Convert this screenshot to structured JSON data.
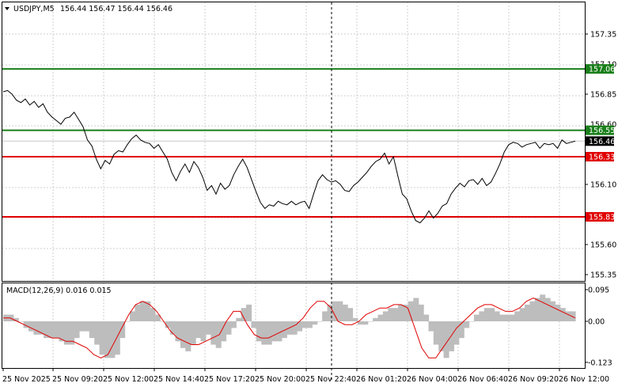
{
  "header": {
    "symbol": "USDJPY,M5",
    "ohlc": "156.44 156.47 156.44 156.46",
    "menu_arrow": "triangle-down-icon"
  },
  "price_axis": {
    "ticks": [
      "157.35",
      "156.85",
      "156.10",
      "155.60",
      "155.35"
    ],
    "partially_hidden_ticks": [
      "157.10",
      "156.60"
    ]
  },
  "levels": [
    {
      "value": 157.06,
      "label": "157.06",
      "color": "#1a7f1a",
      "kind": "resistance"
    },
    {
      "value": 156.55,
      "label": "156.55",
      "color": "#1a7f1a",
      "kind": "resistance"
    },
    {
      "value": 156.33,
      "label": "156.33",
      "color": "#e00000",
      "kind": "support"
    },
    {
      "value": 155.83,
      "label": "155.83",
      "color": "#e00000",
      "kind": "support"
    }
  ],
  "current_price": {
    "value": 156.46,
    "label": "156.46",
    "color": "#000000"
  },
  "macd": {
    "title": "MACD(12,26,9) 0.016 0.015",
    "ticks": [
      "0.095",
      "0.00",
      "-0.123"
    ],
    "histogram_color": "#bdbdbd",
    "signal_color": "#e00000"
  },
  "time_axis": {
    "labels": [
      "25 Nov 2025",
      "25 Nov 09:20",
      "25 Nov 12:00",
      "25 Nov 14:40",
      "25 Nov 17:20",
      "25 Nov 20:00",
      "25 Nov 22:40",
      "26 Nov 01:20",
      "26 Nov 04:00",
      "26 Nov 06:40",
      "26 Nov 09:20",
      "26 Nov 12:00"
    ]
  },
  "chart_data": {
    "type": "line",
    "series": [
      {
        "values": [
          156.87,
          156.88,
          156.85,
          156.8,
          156.78,
          156.81,
          156.76,
          156.79,
          156.74,
          156.77,
          156.7,
          156.66,
          156.63,
          156.6,
          156.65,
          156.66,
          156.7,
          156.64,
          156.58,
          156.47,
          156.42,
          156.31,
          156.23,
          156.3,
          156.27,
          156.35,
          156.38,
          156.37,
          156.43,
          156.48,
          156.51,
          156.47,
          156.45,
          156.44,
          156.4,
          156.43,
          156.37,
          156.31,
          156.2,
          156.13,
          156.21,
          156.27,
          156.2,
          156.29,
          156.24,
          156.16,
          156.05,
          156.09,
          156.02,
          156.11,
          156.06,
          156.09,
          156.18,
          156.25,
          156.31,
          156.24,
          156.14,
          156.04,
          155.95,
          155.9,
          155.93,
          155.92,
          155.96,
          155.94,
          155.93,
          155.96,
          155.93,
          155.95,
          155.96,
          155.9,
          156.02,
          156.13,
          156.18,
          156.14,
          156.12,
          156.13,
          156.1,
          156.05,
          156.04,
          156.09,
          156.12,
          156.16,
          156.2,
          156.25,
          156.29,
          156.31,
          156.36,
          156.27,
          156.33,
          156.17,
          156.02,
          155.98,
          155.88,
          155.8,
          155.78,
          155.82,
          155.88,
          155.82,
          155.86,
          155.92,
          155.94,
          156.02,
          156.07,
          156.11,
          156.08,
          156.13,
          156.14,
          156.1,
          156.15,
          156.09,
          156.12,
          156.19,
          156.27,
          156.37,
          156.43,
          156.45,
          156.44,
          156.41,
          156.43,
          156.44,
          156.45,
          156.4,
          156.44,
          156.43,
          156.44,
          156.4,
          156.47,
          156.44,
          156.45,
          156.46
        ]
      }
    ],
    "ylim": [
      155.28,
      157.5
    ]
  },
  "macd_data": {
    "histogram": [
      0.02,
      0.02,
      0.01,
      0.0,
      -0.02,
      -0.03,
      -0.04,
      -0.04,
      -0.05,
      -0.05,
      -0.05,
      -0.06,
      -0.07,
      -0.07,
      -0.05,
      -0.03,
      -0.03,
      -0.05,
      -0.07,
      -0.1,
      -0.11,
      -0.11,
      -0.1,
      -0.05,
      0.0,
      0.03,
      0.05,
      0.06,
      0.06,
      0.04,
      0.02,
      0.0,
      -0.02,
      -0.04,
      -0.06,
      -0.08,
      -0.09,
      -0.07,
      -0.05,
      -0.06,
      -0.04,
      -0.07,
      -0.08,
      -0.06,
      -0.04,
      -0.02,
      0.01,
      0.04,
      0.05,
      -0.02,
      -0.06,
      -0.07,
      -0.07,
      -0.06,
      -0.06,
      -0.05,
      -0.04,
      -0.04,
      -0.03,
      -0.02,
      -0.02,
      -0.01,
      0.0,
      0.03,
      0.05,
      0.06,
      0.06,
      0.05,
      0.04,
      0.01,
      -0.01,
      -0.01,
      0.0,
      0.01,
      0.02,
      0.03,
      0.04,
      0.04,
      0.05,
      0.05,
      0.06,
      0.07,
      0.05,
      0.02,
      -0.03,
      -0.07,
      -0.09,
      -0.11,
      -0.09,
      -0.07,
      -0.05,
      -0.02,
      0.0,
      0.02,
      0.03,
      0.04,
      0.04,
      0.03,
      0.02,
      0.02,
      0.02,
      0.03,
      0.04,
      0.05,
      0.06,
      0.07,
      0.08,
      0.07,
      0.06,
      0.05,
      0.04,
      0.03,
      0.03
    ],
    "signal": [
      0.01,
      0.01,
      0.0,
      -0.01,
      -0.02,
      -0.03,
      -0.04,
      -0.05,
      -0.05,
      -0.06,
      -0.06,
      -0.07,
      -0.08,
      -0.1,
      -0.11,
      -0.1,
      -0.06,
      -0.02,
      0.02,
      0.05,
      0.06,
      0.05,
      0.03,
      0.0,
      -0.03,
      -0.05,
      -0.06,
      -0.07,
      -0.07,
      -0.06,
      -0.05,
      -0.04,
      0.0,
      0.03,
      0.03,
      -0.01,
      -0.04,
      -0.05,
      -0.05,
      -0.04,
      -0.03,
      -0.02,
      -0.01,
      0.01,
      0.04,
      0.06,
      0.06,
      0.04,
      0.0,
      -0.01,
      -0.01,
      0.0,
      0.02,
      0.03,
      0.04,
      0.04,
      0.05,
      0.05,
      0.04,
      -0.02,
      -0.08,
      -0.11,
      -0.11,
      -0.08,
      -0.05,
      -0.02,
      0.0,
      0.02,
      0.04,
      0.05,
      0.05,
      0.04,
      0.03,
      0.03,
      0.04,
      0.06,
      0.07,
      0.06,
      0.05,
      0.04,
      0.03,
      0.02,
      0.01
    ]
  }
}
